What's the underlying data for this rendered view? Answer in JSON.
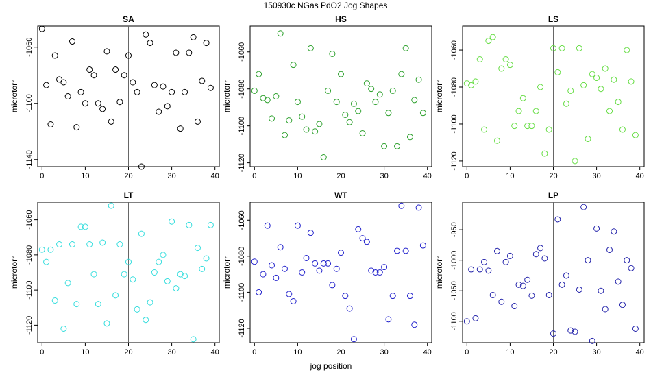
{
  "figure": {
    "title": "150930c   NGas PdO2 Jog Shapes",
    "xlabel": "jog position"
  },
  "chart_data": [
    {
      "type": "scatter",
      "title": "SA",
      "ylabel": "microtorr",
      "color": "#000000",
      "xlim": [
        -1,
        41
      ],
      "ylim": [
        -1145,
        -1045
      ],
      "xticks": [
        0,
        10,
        20,
        30,
        40
      ],
      "yticks": [
        -1060,
        -1100,
        -1140
      ],
      "vline": 20,
      "x": [
        0,
        1,
        2,
        3,
        4,
        5,
        6,
        7,
        8,
        9,
        10,
        11,
        12,
        13,
        14,
        15,
        16,
        17,
        18,
        19,
        20,
        21,
        22,
        23,
        24,
        25,
        26,
        27,
        28,
        29,
        30,
        31,
        32,
        33,
        34,
        35,
        36,
        37,
        38,
        39
      ],
      "y": [
        -1047,
        -1087,
        -1115,
        -1066,
        -1083,
        -1085,
        -1095,
        -1056,
        -1117,
        -1092,
        -1100,
        -1076,
        -1080,
        -1100,
        -1104,
        -1063,
        -1113,
        -1076,
        -1099,
        -1080,
        -1066,
        -1085,
        -1092,
        -1145,
        -1051,
        -1057,
        -1087,
        -1106,
        -1088,
        -1102,
        -1092,
        -1064,
        -1118,
        -1092,
        -1064,
        -1053,
        -1113,
        -1084,
        -1057,
        -1089
      ]
    },
    {
      "type": "scatter",
      "title": "HS",
      "ylabel": "microtorr",
      "color": "#2ca02c",
      "xlim": [
        -1,
        41
      ],
      "ylim": [
        -1122,
        -1046
      ],
      "xticks": [
        0,
        10,
        20,
        30,
        40
      ],
      "yticks": [
        -1060,
        -1080,
        -1100,
        -1120
      ],
      "vline": 20,
      "x": [
        0,
        1,
        2,
        3,
        4,
        5,
        6,
        7,
        8,
        9,
        10,
        11,
        12,
        13,
        14,
        15,
        16,
        17,
        18,
        19,
        20,
        21,
        22,
        23,
        24,
        25,
        26,
        27,
        28,
        29,
        30,
        31,
        32,
        33,
        34,
        35,
        36,
        37,
        38,
        39
      ],
      "y": [
        -1081,
        -1072,
        -1085,
        -1086,
        -1096,
        -1084,
        -1050,
        -1105,
        -1097,
        -1067,
        -1087,
        -1095,
        -1102,
        -1058,
        -1103,
        -1099,
        -1117,
        -1081,
        -1061,
        -1087,
        -1072,
        -1094,
        -1098,
        -1088,
        -1092,
        -1104,
        -1077,
        -1080,
        -1087,
        -1083,
        -1111,
        -1093,
        -1081,
        -1111,
        -1072,
        -1058,
        -1106,
        -1086,
        -1075,
        -1093
      ]
    },
    {
      "type": "scatter",
      "title": "LS",
      "ylabel": "microtorr",
      "color": "#66dd44",
      "xlim": [
        -1,
        41
      ],
      "ylim": [
        -1123,
        -1047
      ],
      "xticks": [
        0,
        10,
        20,
        30,
        40
      ],
      "yticks": [
        -1060,
        -1080,
        -1100,
        -1120
      ],
      "vline": 20,
      "x": [
        0,
        1,
        2,
        3,
        4,
        5,
        6,
        7,
        8,
        9,
        10,
        11,
        12,
        13,
        14,
        15,
        16,
        17,
        18,
        19,
        20,
        21,
        22,
        23,
        24,
        25,
        26,
        27,
        28,
        29,
        30,
        31,
        32,
        33,
        34,
        35,
        36,
        37,
        38,
        39
      ],
      "y": [
        -1078,
        -1079,
        -1077,
        -1065,
        -1103,
        -1055,
        -1053,
        -1109,
        -1070,
        -1065,
        -1068,
        -1101,
        -1093,
        -1086,
        -1101,
        -1101,
        -1093,
        -1080,
        -1116,
        -1103,
        -1059,
        -1072,
        -1059,
        -1089,
        -1082,
        -1120,
        -1059,
        -1079,
        -1108,
        -1073,
        -1075,
        -1081,
        -1070,
        -1093,
        -1076,
        -1088,
        -1103,
        -1060,
        -1077,
        -1106
      ]
    },
    {
      "type": "scatter",
      "title": "LT",
      "ylabel": "microtorr",
      "color": "#33dddd",
      "xlim": [
        -1,
        41
      ],
      "ylim": [
        -1130,
        -1050
      ],
      "xticks": [
        0,
        10,
        20,
        30,
        40
      ],
      "yticks": [
        -1060,
        -1080,
        -1100,
        -1120
      ],
      "vline": 20,
      "x": [
        0,
        1,
        2,
        3,
        4,
        5,
        6,
        7,
        8,
        9,
        10,
        11,
        12,
        13,
        14,
        15,
        16,
        17,
        18,
        19,
        20,
        21,
        22,
        23,
        24,
        25,
        26,
        27,
        28,
        29,
        30,
        31,
        32,
        33,
        34,
        35,
        36,
        37,
        38,
        39
      ],
      "y": [
        -1077,
        -1084,
        -1077,
        -1106,
        -1074,
        -1122,
        -1096,
        -1074,
        -1108,
        -1064,
        -1064,
        -1074,
        -1091,
        -1108,
        -1073,
        -1119,
        -1052,
        -1103,
        -1074,
        -1091,
        -1084,
        -1094,
        -1111,
        -1068,
        -1117,
        -1107,
        -1090,
        -1084,
        -1080,
        -1095,
        -1061,
        -1099,
        -1091,
        -1092,
        -1063,
        -1128,
        -1076,
        -1088,
        -1082,
        -1063
      ]
    },
    {
      "type": "scatter",
      "title": "WT",
      "ylabel": "microtorr",
      "color": "#2222cc",
      "xlim": [
        -1,
        41
      ],
      "ylim": [
        -1128,
        -1050
      ],
      "xticks": [
        0,
        10,
        20,
        30,
        40
      ],
      "yticks": [
        -1060,
        -1080,
        -1100,
        -1120
      ],
      "vline": 20,
      "x": [
        0,
        1,
        2,
        3,
        4,
        5,
        6,
        7,
        8,
        9,
        10,
        11,
        12,
        13,
        14,
        15,
        16,
        17,
        18,
        19,
        20,
        21,
        22,
        23,
        24,
        25,
        26,
        27,
        28,
        29,
        30,
        31,
        32,
        33,
        34,
        35,
        36,
        37,
        38,
        39
      ],
      "y": [
        -1083,
        -1100,
        -1090,
        -1063,
        -1085,
        -1092,
        -1075,
        -1087,
        -1101,
        -1105,
        -1063,
        -1089,
        -1081,
        -1067,
        -1084,
        -1088,
        -1084,
        -1084,
        -1096,
        -1087,
        -1078,
        -1102,
        -1109,
        -1126,
        -1065,
        -1070,
        -1072,
        -1088,
        -1089,
        -1089,
        -1086,
        -1115,
        -1102,
        -1077,
        -1052,
        -1077,
        -1102,
        -1118,
        -1053,
        -1074
      ]
    },
    {
      "type": "scatter",
      "title": "LP",
      "ylabel": "microtorr",
      "color": "#2222aa",
      "xlim": [
        -1,
        41
      ],
      "ylim": [
        -1135,
        -905
      ],
      "xticks": [
        0,
        10,
        20,
        30,
        40
      ],
      "yticks": [
        -950,
        -1000,
        -1050,
        -1100
      ],
      "vline": 20,
      "x": [
        0,
        1,
        2,
        3,
        4,
        5,
        6,
        7,
        8,
        9,
        10,
        11,
        12,
        13,
        14,
        15,
        16,
        17,
        18,
        19,
        20,
        21,
        22,
        23,
        24,
        25,
        26,
        27,
        28,
        29,
        30,
        31,
        32,
        33,
        34,
        35,
        36,
        37,
        38,
        39
      ],
      "y": [
        -1100,
        -1015,
        -1095,
        -1015,
        -1003,
        -1017,
        -1057,
        -985,
        -1068,
        -1003,
        -993,
        -1075,
        -1040,
        -1042,
        -1032,
        -1058,
        -990,
        -980,
        -997,
        -1057,
        -1120,
        -933,
        -1040,
        -1025,
        -1115,
        -1117,
        -1048,
        -913,
        -1000,
        -1132,
        -948,
        -1050,
        -1080,
        -983,
        -953,
        -1035,
        -1073,
        -1000,
        -1013,
        -1112
      ]
    }
  ]
}
